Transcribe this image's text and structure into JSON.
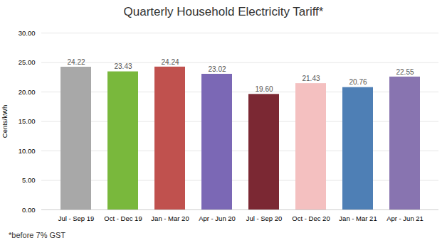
{
  "chart_data": {
    "type": "bar",
    "title": "Quarterly Household Electricity Tariff*",
    "footnote": "*before 7% GST",
    "ylabel": "Cents/kWh",
    "categories": [
      "Jul - Sep 19",
      "Oct - Dec 19",
      "Jan - Mar 20",
      "Apr - Jun 20",
      "Jul - Sep 20",
      "Oct - Dec 20",
      "Jan - Mar 21",
      "Apr - Jun 21"
    ],
    "values": [
      24.22,
      23.43,
      24.24,
      23.02,
      19.6,
      21.43,
      20.76,
      22.55
    ],
    "value_labels": [
      "24.22",
      "23.43",
      "24.24",
      "23.02",
      "19.60",
      "21.43",
      "20.76",
      "22.55"
    ],
    "colors": [
      "#a8a8a8",
      "#79b83c",
      "#c0514e",
      "#7b68b5",
      "#7b2833",
      "#f4c0c0",
      "#4e7fb5",
      "#8874b0"
    ],
    "ylim": [
      0,
      30
    ],
    "yticks": [
      {
        "value": 0,
        "label": "0.00"
      },
      {
        "value": 5,
        "label": "5.00"
      },
      {
        "value": 10,
        "label": "10.00"
      },
      {
        "value": 15,
        "label": "15.00"
      },
      {
        "value": 20,
        "label": "20.00"
      },
      {
        "value": 25,
        "label": "25.00"
      },
      {
        "value": 30,
        "label": "30.00"
      }
    ],
    "grid": true,
    "data_labels": true
  }
}
